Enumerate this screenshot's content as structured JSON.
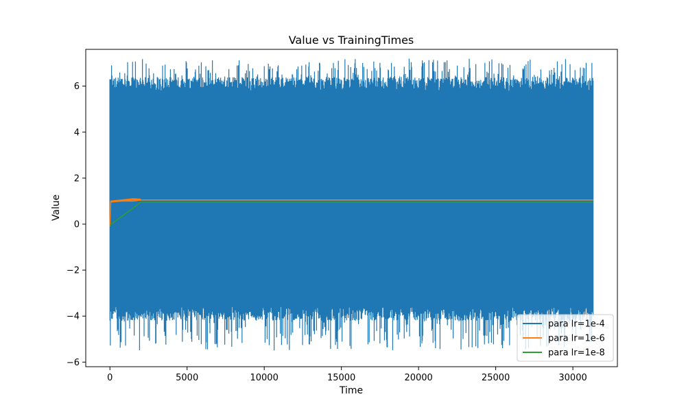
{
  "chart_data": {
    "type": "line",
    "title": "Value vs TrainingTimes",
    "xlabel": "Time",
    "ylabel": "Value",
    "xlim": [
      -1566,
      32886
    ],
    "ylim": [
      -6.2,
      7.6
    ],
    "xticks": [
      0,
      5000,
      10000,
      15000,
      20000,
      25000,
      30000
    ],
    "xtick_labels": [
      "0",
      "5000",
      "10000",
      "15000",
      "20000",
      "25000",
      "30000"
    ],
    "yticks": [
      -6,
      -4,
      -2,
      0,
      2,
      4,
      6
    ],
    "ytick_labels": [
      "−6",
      "−4",
      "−2",
      "0",
      "2",
      "4",
      "6"
    ],
    "grid": false,
    "legend_position": "lower-right",
    "series": [
      {
        "name": "para lr=1e-4",
        "color": "#1f77b4",
        "style": "noisy band around 1 with mean ~1, range ~-5.4 to 7.2",
        "x_range": [
          0,
          31320
        ],
        "band_low": -3.6,
        "band_high": 5.8,
        "peak_high": 7.2,
        "peak_low": -5.5,
        "points": [
          [
            0,
            -0.1
          ],
          [
            0,
            6.3
          ],
          [
            31320,
            5.7
          ]
        ]
      },
      {
        "name": "para lr=1e-6",
        "color": "#ff7f0e",
        "points": [
          [
            0,
            -0.1
          ],
          [
            50,
            1.0
          ],
          [
            1500,
            1.0
          ],
          [
            2000,
            1.05
          ],
          [
            31320,
            1.05
          ]
        ]
      },
      {
        "name": "para lr=1e-8",
        "color": "#2ca02c",
        "points": [
          [
            0,
            -0.05
          ],
          [
            2000,
            0.95
          ],
          [
            31320,
            0.95
          ]
        ]
      }
    ]
  }
}
